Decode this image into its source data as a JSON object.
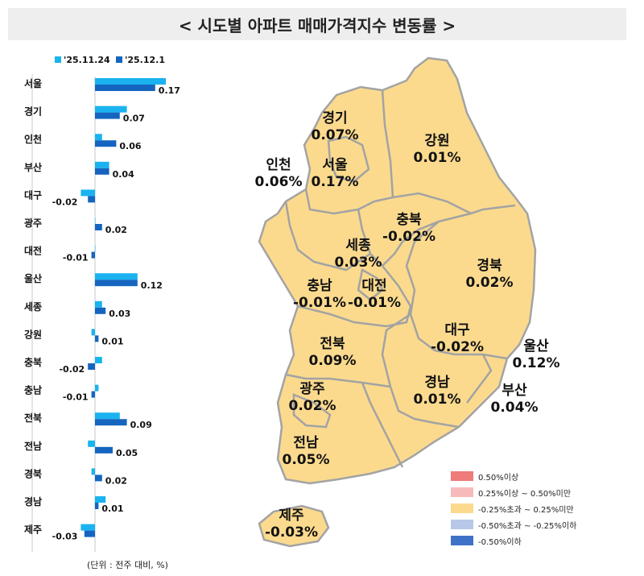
{
  "title": "< 시도별 아파트 매매가격지수 변동률 >",
  "unit_note": "(단위 : 전주 대비, %)",
  "chart_data": {
    "type": "bar",
    "orientation": "horizontal",
    "categories": [
      "서울",
      "경기",
      "인천",
      "부산",
      "대구",
      "광주",
      "대전",
      "울산",
      "세종",
      "강원",
      "충북",
      "충남",
      "전북",
      "전남",
      "경북",
      "경남",
      "제주"
    ],
    "series": [
      {
        "name": "'25.11.24",
        "color": "#1ab3ef",
        "values": [
          0.2,
          0.09,
          0.02,
          0.04,
          -0.04,
          0.0,
          0.0,
          0.12,
          0.02,
          -0.01,
          0.02,
          0.01,
          0.07,
          -0.02,
          -0.01,
          0.03,
          -0.04
        ]
      },
      {
        "name": "'25.12.1",
        "color": "#1565c0",
        "values": [
          0.17,
          0.07,
          0.06,
          0.04,
          -0.02,
          0.02,
          -0.01,
          0.12,
          0.03,
          0.01,
          -0.02,
          -0.01,
          0.09,
          0.05,
          0.02,
          0.01,
          -0.03
        ]
      }
    ],
    "data_labels": [
      "0.17",
      "0.07",
      "0.06",
      "0.04",
      "-0.02",
      "0.02",
      "-0.01",
      "0.12",
      "0.03",
      "0.01",
      "-0.02",
      "-0.01",
      "0.09",
      "0.05",
      "0.02",
      "0.01",
      "-0.03"
    ],
    "legend_position": "top-left",
    "grid": false
  },
  "map": {
    "fill_color": "#fbda8e",
    "border_color": "#a3a3a3",
    "labels": [
      {
        "name": "경기",
        "value": "0.07%"
      },
      {
        "name": "강원",
        "value": "0.01%"
      },
      {
        "name": "인천",
        "value": "0.06%"
      },
      {
        "name": "서울",
        "value": "0.17%"
      },
      {
        "name": "충북",
        "value": "-0.02%"
      },
      {
        "name": "세종",
        "value": "0.03%"
      },
      {
        "name": "경북",
        "value": "0.02%"
      },
      {
        "name": "충남",
        "value": "-0.01%"
      },
      {
        "name": "대전",
        "value": "-0.01%"
      },
      {
        "name": "대구",
        "value": "-0.02%"
      },
      {
        "name": "울산",
        "value": "0.12%"
      },
      {
        "name": "전북",
        "value": "0.09%"
      },
      {
        "name": "경남",
        "value": "0.01%"
      },
      {
        "name": "부산",
        "value": "0.04%"
      },
      {
        "name": "광주",
        "value": "0.02%"
      },
      {
        "name": "전남",
        "value": "0.05%"
      },
      {
        "name": "제주",
        "value": "-0.03%"
      }
    ]
  },
  "legend": [
    {
      "label": "0.50%이상",
      "color": "#ef7b7b"
    },
    {
      "label": "0.25%이상 ~ 0.50%미만",
      "color": "#f6baba"
    },
    {
      "label": "-0.25%초과 ~ 0.25%미만",
      "color": "#fbda8e"
    },
    {
      "label": "-0.50%초과 ~ -0.25%이하",
      "color": "#b7c7e8"
    },
    {
      "label": "-0.50%이하",
      "color": "#3f72c6"
    }
  ]
}
